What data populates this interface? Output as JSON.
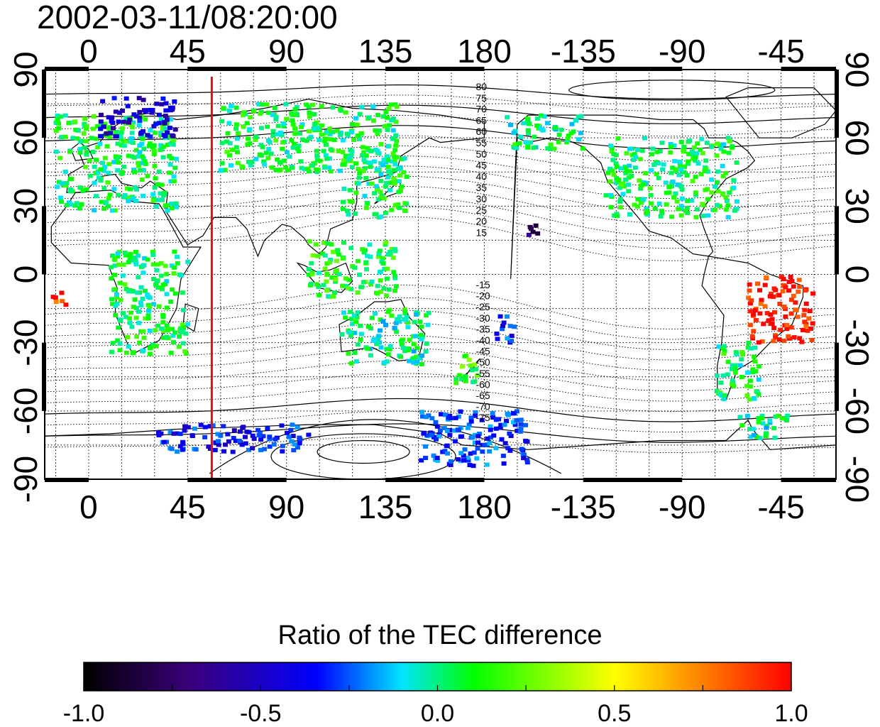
{
  "timestamp": "2002-03-11/08:20:00",
  "map": {
    "x_ticks": [
      {
        "lon": 0,
        "label": "0"
      },
      {
        "lon": 45,
        "label": "45"
      },
      {
        "lon": 90,
        "label": "90"
      },
      {
        "lon": 135,
        "label": "135"
      },
      {
        "lon": 180,
        "label": "180"
      },
      {
        "lon": 225,
        "label": "-135"
      },
      {
        "lon": 270,
        "label": "-90"
      },
      {
        "lon": 315,
        "label": "-45"
      }
    ],
    "y_ticks": [
      {
        "lat": 90,
        "label": "90"
      },
      {
        "lat": 60,
        "label": "60"
      },
      {
        "lat": 30,
        "label": "30"
      },
      {
        "lat": 0,
        "label": "0"
      },
      {
        "lat": -30,
        "label": "-30"
      },
      {
        "lat": -60,
        "label": "-60"
      },
      {
        "lat": -90,
        "label": "-90"
      }
    ],
    "lon_range": [
      -20,
      340
    ],
    "lat_range": [
      -90,
      90
    ],
    "meridian_line": {
      "lon": 56,
      "color": "#dd1111"
    },
    "north_contour_labels": [
      "80",
      "75",
      "70",
      "65",
      "60",
      "55",
      "50",
      "45",
      "40",
      "35",
      "30",
      "25",
      "20",
      "15"
    ],
    "south_contour_labels": [
      "-15",
      "-20",
      "-25",
      "-30",
      "-35",
      "-40",
      "-45",
      "-50",
      "-55",
      "-60",
      "-65",
      "-70",
      "-75"
    ]
  },
  "colorbar": {
    "title": "Ratio of the TEC difference",
    "min": -1.0,
    "max": 1.0,
    "tick_labels": [
      "-1.0",
      "-0.5",
      "0.0",
      "0.5",
      "1.0"
    ],
    "stops": [
      "#000000",
      "#3a007a",
      "#0000ff",
      "#00e5ff",
      "#00ff00",
      "#ffff00",
      "#ff0000"
    ]
  },
  "tec_regions": [
    {
      "name": "Europe",
      "lon": [
        -15,
        40
      ],
      "lat": [
        28,
        70
      ],
      "value": 0.05
    },
    {
      "name": "Scandinavia",
      "lon": [
        5,
        40
      ],
      "lat": [
        60,
        78
      ],
      "value": -0.45
    },
    {
      "name": "Japan-China",
      "lon": [
        115,
        145
      ],
      "lat": [
        25,
        55
      ],
      "value": 0.05
    },
    {
      "name": "Indonesia",
      "lon": [
        100,
        140
      ],
      "lat": [
        -10,
        15
      ],
      "value": 0.1
    },
    {
      "name": "Australia",
      "lon": [
        115,
        155
      ],
      "lat": [
        -40,
        -15
      ],
      "value": 0.0
    },
    {
      "name": "New Zealand",
      "lon": [
        165,
        178
      ],
      "lat": [
        -48,
        -35
      ],
      "value": 0.15
    },
    {
      "name": "North America",
      "lon": [
        235,
        295
      ],
      "lat": [
        25,
        60
      ],
      "value": 0.05
    },
    {
      "name": "Alaska",
      "lon": [
        190,
        225
      ],
      "lat": [
        55,
        70
      ],
      "value": 0.0
    },
    {
      "name": "Hawaii",
      "lon": [
        200,
        205
      ],
      "lat": [
        17,
        23
      ],
      "value": -0.7
    },
    {
      "name": "Brazil",
      "lon": [
        300,
        330
      ],
      "lat": [
        -30,
        0
      ],
      "value": 0.95
    },
    {
      "name": "Southern South America",
      "lon": [
        285,
        305
      ],
      "lat": [
        -55,
        -30
      ],
      "value": 0.05
    },
    {
      "name": "Antarctic Peninsula",
      "lon": [
        295,
        320
      ],
      "lat": [
        -72,
        -62
      ],
      "value": 0.0
    },
    {
      "name": "Antarctica coast",
      "lon": [
        30,
        100
      ],
      "lat": [
        -78,
        -66
      ],
      "value": -0.35
    },
    {
      "name": "Africa",
      "lon": [
        10,
        45
      ],
      "lat": [
        -35,
        10
      ],
      "value": 0.05
    },
    {
      "name": "Siberia",
      "lon": [
        60,
        140
      ],
      "lat": [
        45,
        75
      ],
      "value": 0.05
    },
    {
      "name": "Pacific south",
      "lon": [
        150,
        200
      ],
      "lat": [
        -85,
        -60
      ],
      "value": -0.3
    },
    {
      "name": "Tahiti region",
      "lon": [
        185,
        195
      ],
      "lat": [
        -30,
        -18
      ],
      "value": -0.3
    },
    {
      "name": "Atlantic Azores",
      "lon": [
        -18,
        -10
      ],
      "lat": [
        -14,
        -8
      ],
      "value": 0.9
    }
  ]
}
